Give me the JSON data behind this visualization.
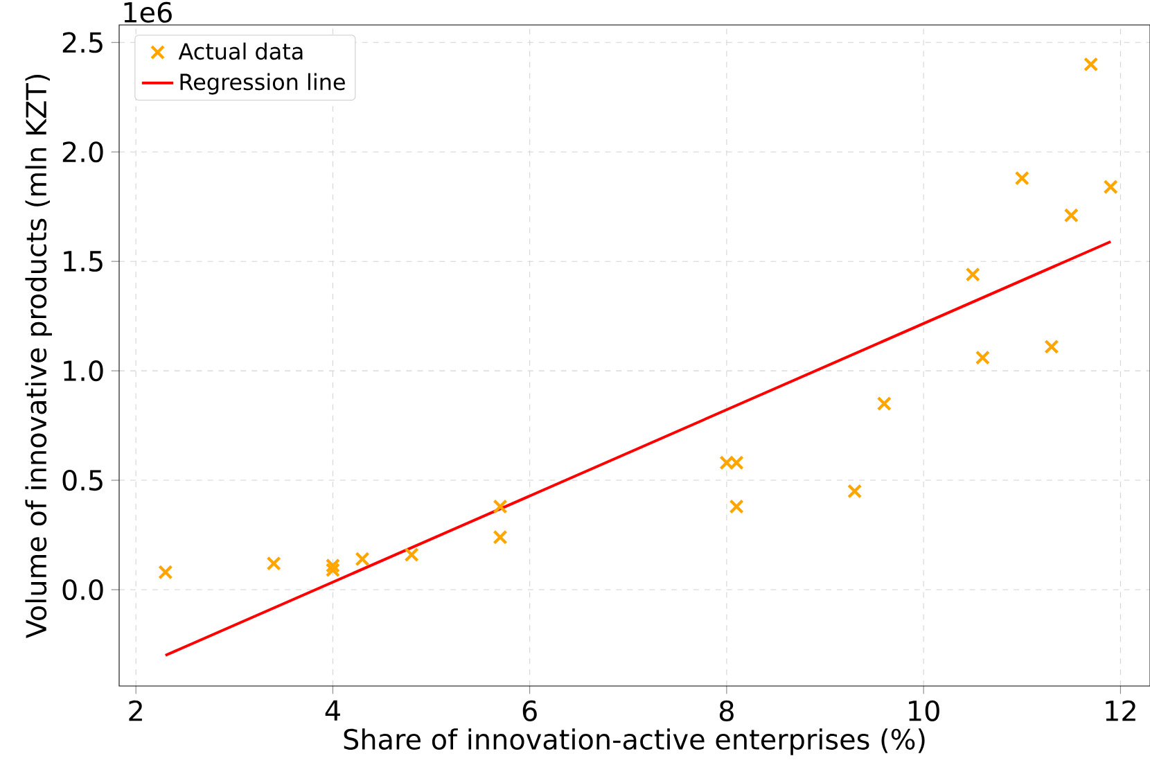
{
  "chart_data": {
    "type": "scatter",
    "xlabel": "Share of innovation-active enterprises (%)",
    "ylabel": "Volume of innovative products (mln KZT)",
    "annotations": [
      "1e6"
    ],
    "xlim": [
      1.83,
      12.3
    ],
    "ylim": [
      -0.44,
      2.58
    ],
    "xticks": [
      2,
      4,
      6,
      8,
      10,
      12
    ],
    "yticks": [
      {
        "value": 0,
        "label": "0.0"
      },
      {
        "value": 0.5,
        "label": "0.5"
      },
      {
        "value": 1.0,
        "label": "1.0"
      },
      {
        "value": 1.5,
        "label": "1.5"
      },
      {
        "value": 2.0,
        "label": "2.0"
      },
      {
        "value": 2.5,
        "label": "2.5"
      }
    ],
    "grid": true,
    "legend": "top left",
    "series": [
      {
        "name": "Actual data",
        "color": "#ffa500",
        "marker": "cross",
        "x": [
          2.3,
          3.4,
          4.0,
          4.0,
          4.3,
          4.8,
          5.7,
          5.7,
          8.0,
          8.1,
          8.1,
          9.3,
          9.6,
          10.5,
          10.6,
          11.0,
          11.3,
          11.5,
          11.7,
          11.9
        ],
        "values": [
          0.08,
          0.12,
          0.11,
          0.09,
          0.14,
          0.16,
          0.38,
          0.24,
          0.58,
          0.58,
          0.38,
          0.45,
          0.85,
          1.44,
          1.06,
          1.88,
          1.11,
          1.71,
          2.4,
          1.84
        ]
      },
      {
        "name": "Regression line",
        "type": "line",
        "color": "#ff0000",
        "marker": "none",
        "line_style": "solid",
        "x": [
          2.3,
          11.9
        ],
        "values": [
          -0.3,
          1.59
        ]
      }
    ]
  }
}
